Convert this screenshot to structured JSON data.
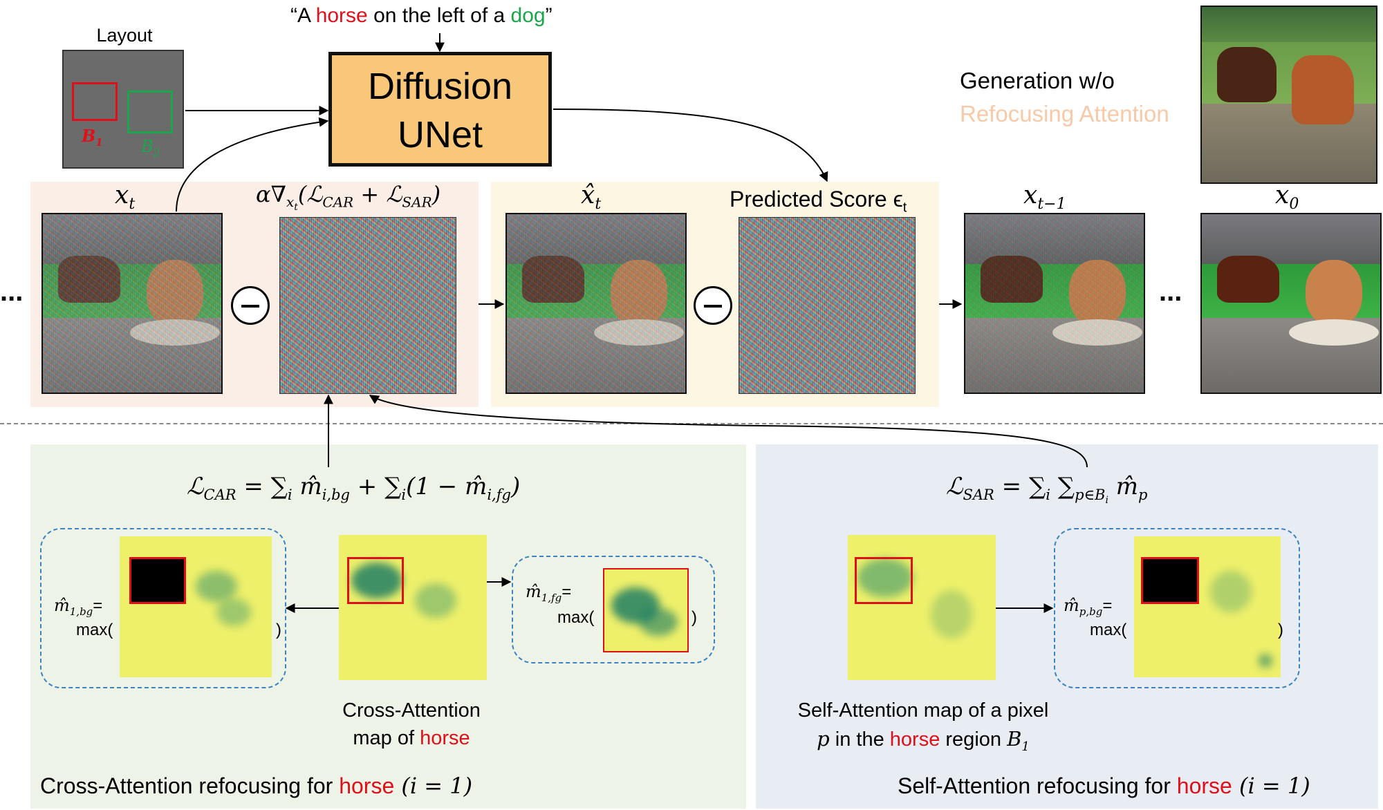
{
  "prompt": {
    "open": "“A ",
    "horse": "horse",
    "mid": " on the left of a ",
    "dog": "dog",
    "close": "”"
  },
  "layout": {
    "title": "Layout",
    "b1": "B",
    "b1_sub": "1",
    "b2": "B",
    "b2_sub": "2"
  },
  "unet": {
    "line1": "Diffusion",
    "line2": "UNet"
  },
  "generation": {
    "line1": "Generation w/o",
    "line2": "Refocusing Attention"
  },
  "labels": {
    "xt": "x",
    "xt_sub": "t",
    "grad_alpha": "α∇",
    "grad_sub": "x",
    "grad_subsub": "t",
    "grad_paren": "(ℒ",
    "grad_car": "CAR",
    "grad_plus": " + ℒ",
    "grad_sar": "SAR",
    "grad_close": ")",
    "xhat": "x̂",
    "xhat_sub": "t",
    "score": "Predicted Score ϵ",
    "score_sub": "t",
    "xt1": "x",
    "xt1_sub": "t−1",
    "x0": "x",
    "x0_sub": "0",
    "ellipsis": "..."
  },
  "car": {
    "formula_lhs": "ℒ",
    "formula_lhs_sub": "CAR",
    "formula_rhs1": " = ∑",
    "formula_i": "i",
    "formula_m1": " m̂",
    "formula_m1_sub": "i,bg",
    "formula_rhs2": " + ∑",
    "formula_i2": "i",
    "formula_rhs3": "(1 − m̂",
    "formula_m2_sub": "i,fg",
    "formula_rhs4": ")",
    "bg_label": "m̂",
    "bg_sub": "1,bg",
    "bg_eq": "=",
    "max": "max(",
    "close": ")",
    "fg_label": "m̂",
    "fg_sub": "1,fg",
    "fg_eq": "=",
    "map_line1": "Cross-Attention",
    "map_line2_pre": "map of ",
    "map_line2_horse": "horse",
    "caption_pre": "Cross-Attention refocusing for ",
    "caption_horse": "horse",
    "caption_post": " (i = 1)"
  },
  "sar": {
    "formula_lhs": "ℒ",
    "formula_lhs_sub": "SAR",
    "formula_rhs": " = ∑",
    "formula_i": "i",
    "formula_sum2": " ∑",
    "formula_sum2_sub": "p∈B",
    "formula_sum2_subsub": "i",
    "formula_m": " m̂",
    "formula_m_sub": "p",
    "bg_label": "m̂",
    "bg_sub": "p,bg",
    "bg_eq": "=",
    "max": "max(",
    "close": ")",
    "map_line1": "Self-Attention map of a pixel",
    "map_line2_p": "p",
    "map_line2_mid": " in the ",
    "map_line2_horse": "horse",
    "map_line2_post": " region ",
    "map_line2_b": "B",
    "map_line2_b_sub": "1",
    "caption_pre": "Self-Attention refocusing for ",
    "caption_horse": "horse",
    "caption_post": " (i = 1)"
  },
  "colors": {
    "red": "#e0101a",
    "green": "#1aa64b",
    "unet_fill": "#f9c77a",
    "car_panel": "#edf3e6",
    "sar_panel": "#e8ecf3",
    "pink_panel": "#fbeee6",
    "yellow_panel": "#fdf6e3",
    "refocus_text": "#f7c9a8"
  }
}
